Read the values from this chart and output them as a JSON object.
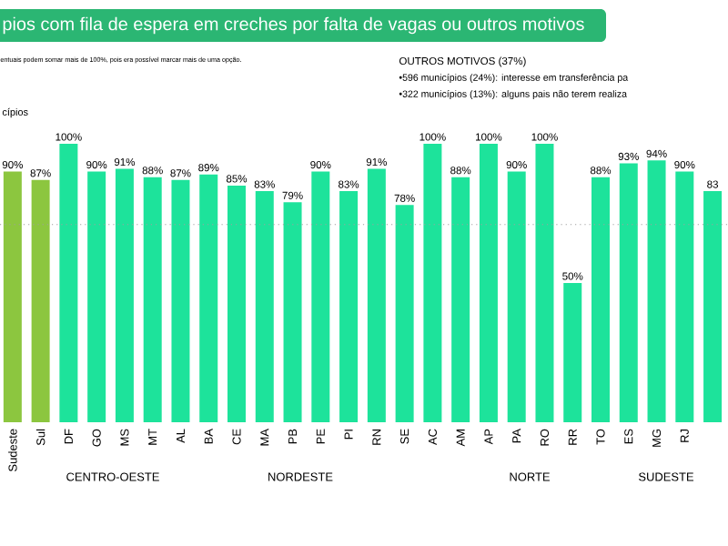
{
  "chart_data": {
    "type": "bar",
    "title": "pios com fila de espera em creches por falta de vagas ou outros motivos",
    "subtitle": "entuais podem somar mais de 100%, pois era possível marcar mais de uma opção.",
    "categories": [
      "Sudeste",
      "Sul",
      "DF",
      "GO",
      "MS",
      "MT",
      "AL",
      "BA",
      "CE",
      "MA",
      "PB",
      "PE",
      "PI",
      "RN",
      "SE",
      "AC",
      "AM",
      "AP",
      "PA",
      "RO",
      "RR",
      "TO",
      "ES",
      "MG",
      "RJ",
      null
    ],
    "values": [
      90,
      87,
      100,
      90,
      91,
      88,
      87,
      89,
      85,
      83,
      79,
      90,
      83,
      91,
      78,
      100,
      88,
      100,
      90,
      100,
      50,
      88,
      93,
      94,
      90,
      83
    ],
    "value_labels": [
      "90%",
      "87%",
      "100%",
      "90%",
      "91%",
      "88%",
      "87%",
      "89%",
      "85%",
      "83%",
      "79%",
      "90%",
      "83%",
      "91%",
      "78%",
      "100%",
      "88%",
      "100%",
      "90%",
      "100%",
      "50%",
      "88%",
      "93%",
      "94%",
      "90%",
      "83"
    ],
    "colors": [
      "#8cc63f",
      "#8cc63f",
      "#1de39b",
      "#1de39b",
      "#1de39b",
      "#1de39b",
      "#1de39b",
      "#1de39b",
      "#1de39b",
      "#1de39b",
      "#1de39b",
      "#1de39b",
      "#1de39b",
      "#1de39b",
      "#1de39b",
      "#1de39b",
      "#1de39b",
      "#1de39b",
      "#1de39b",
      "#1de39b",
      "#1de39b",
      "#1de39b",
      "#1de39b",
      "#1de39b",
      "#1de39b",
      "#1de39b"
    ],
    "ylim": [
      0,
      100
    ],
    "tick_labels": "x",
    "ref_lines": [
      {
        "axis": "y",
        "value": 71,
        "color": "#a0a0a0",
        "line_style": "dotted"
      }
    ],
    "annotations": [
      "cípios",
      "OUTROS MOTIVOS (37%)",
      "•596 municípios (24%): interesse em transferência pa",
      "•322 municípios (13%): alguns pais não terem realiza",
      "CENTRO-OESTE",
      "NORDESTE",
      "NORTE",
      "SUDESTE"
    ]
  }
}
